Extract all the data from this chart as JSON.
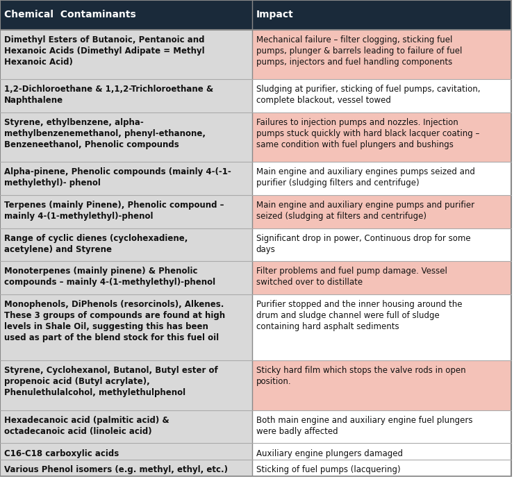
{
  "header": [
    "Chemical  Contaminants",
    "Impact"
  ],
  "header_bg": "#1a2a3a",
  "header_fg": "#ffffff",
  "rows": [
    {
      "contaminant": "Dimethyl Esters of Butanoic, Pentanoic and\nHexanoic Acids (Dimethyl Adipate = Methyl\nHexanoic Acid)",
      "impact": "Mechanical failure – filter clogging, sticking fuel\npumps, plunger & barrels leading to failure of fuel\npumps, injectors and fuel handling components",
      "contaminant_bg": "#d9d9d9",
      "impact_bg": "#f4c2b8"
    },
    {
      "contaminant": "1,2-Dichloroethane & 1,1,2-Trichloroethane &\nNaphthalene",
      "impact": "Sludging at purifier, sticking of fuel pumps, cavitation,\ncomplete blackout, vessel towed",
      "contaminant_bg": "#d9d9d9",
      "impact_bg": "#ffffff"
    },
    {
      "contaminant": "Styrene, ethylbenzene, alpha-\nmethylbenzenemethanol, phenyl-ethanone,\nBenzeneethanol, Phenolic compounds",
      "impact": "Failures to injection pumps and nozzles. Injection\npumps stuck quickly with hard black lacquer coating –\nsame condition with fuel plungers and bushings",
      "contaminant_bg": "#d9d9d9",
      "impact_bg": "#f4c2b8"
    },
    {
      "contaminant": "Alpha-pinene, Phenolic compounds (mainly 4-(-1-\nmethylethyl)- phenol",
      "impact": "Main engine and auxiliary engines pumps seized and\npurifier (sludging filters and centrifuge)",
      "contaminant_bg": "#d9d9d9",
      "impact_bg": "#ffffff"
    },
    {
      "contaminant": "Terpenes (mainly Pinene), Phenolic compound –\nmainly 4-(1-methylethyl)-phenol",
      "impact": "Main engine and auxiliary engine pumps and purifier\nseized (sludging at filters and centrifuge)",
      "contaminant_bg": "#d9d9d9",
      "impact_bg": "#f4c2b8"
    },
    {
      "contaminant": "Range of cyclic dienes (cyclohexadiene,\nacetylene) and Styrene",
      "impact": "Significant drop in power, Continuous drop for some\ndays",
      "contaminant_bg": "#d9d9d9",
      "impact_bg": "#ffffff"
    },
    {
      "contaminant": "Monoterpenes (mainly pinene) & Phenolic\ncompounds – mainly 4-(1-methylethyl)-phenol",
      "impact": "Filter problems and fuel pump damage. Vessel\nswitched over to distillate",
      "contaminant_bg": "#d9d9d9",
      "impact_bg": "#f4c2b8"
    },
    {
      "contaminant": "Monophenols, DiPhenols (resorcinols), Alkenes.\nThese 3 groups of compounds are found at high\nlevels in Shale Oil, suggesting this has been\nused as part of the blend stock for this fuel oil",
      "impact": "Purifier stopped and the inner housing around the\ndrum and sludge channel were full of sludge\ncontaining hard asphalt sediments",
      "contaminant_bg": "#d9d9d9",
      "impact_bg": "#ffffff"
    },
    {
      "contaminant": "Styrene, Cyclohexanol, Butanol, Butyl ester of\npropenoic acid (Butyl acrylate),\nPhenulethulalcohol, methylethulphenol",
      "impact": "Sticky hard film which stops the valve rods in open\nposition.",
      "contaminant_bg": "#d9d9d9",
      "impact_bg": "#f4c2b8"
    },
    {
      "contaminant": "Hexadecanoic acid (palmitic acid) &\noctadecanoic acid (linoleic acid)",
      "impact": "Both main engine and auxiliary engine fuel plungers\nwere badly affected",
      "contaminant_bg": "#d9d9d9",
      "impact_bg": "#ffffff"
    },
    {
      "contaminant": "C16-C18 carboxylic acids",
      "impact": "Auxiliary engine plungers damaged",
      "contaminant_bg": "#d9d9d9",
      "impact_bg": "#ffffff"
    },
    {
      "contaminant": "Various Phenol isomers (e.g. methyl, ethyl, etc.)",
      "impact": "Sticking of fuel pumps (lacquering)",
      "contaminant_bg": "#d9d9d9",
      "impact_bg": "#ffffff"
    }
  ],
  "col_split": 0.493,
  "font_size": 8.5,
  "header_font_size": 10,
  "border_color": "#888888",
  "line_color": "#aaaaaa"
}
